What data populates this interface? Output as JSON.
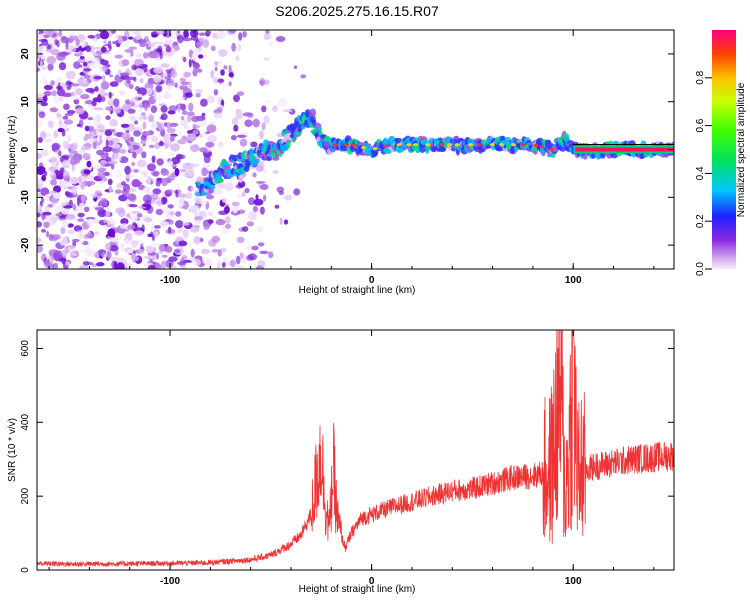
{
  "figure_title": "S206.2025.275.16.15.R07",
  "chart_data": [
    {
      "type": "heatmap",
      "name": "spectrogram",
      "title": "S206.2025.275.16.15.R07",
      "xlabel": "Height of straight line (km)",
      "ylabel": "Frequency (Hz)",
      "xlim": [
        -166,
        150
      ],
      "ylim": [
        -25,
        25
      ],
      "xticks": [
        -100,
        0,
        100
      ],
      "yticks": [
        -20,
        -10,
        0,
        10,
        20
      ],
      "xtick_labels": [
        "-100",
        "0",
        "100"
      ],
      "ytick_labels": [
        "-20",
        "-10",
        "0",
        "10",
        "20"
      ],
      "trace": {
        "x": [
          -86,
          -80,
          -72,
          -64,
          -56,
          -48,
          -40,
          -34,
          -30,
          -26,
          -22,
          -18,
          -10,
          0,
          10,
          20,
          30,
          40,
          50,
          60,
          70,
          80,
          90,
          96,
          100,
          110,
          120,
          130,
          140,
          150
        ],
        "freq": [
          -8,
          -7,
          -4,
          -3,
          -1,
          0,
          3,
          6,
          7,
          3,
          0,
          1,
          1,
          0,
          1,
          1,
          1,
          1,
          1,
          1,
          1,
          1,
          0,
          2,
          0,
          0,
          0,
          0,
          0,
          0
        ]
      },
      "colorbar": {
        "label": "Normalized spectral amplitude",
        "range": [
          0.0,
          1.0
        ],
        "ticks": [
          0.0,
          0.2,
          0.4,
          0.6,
          0.8
        ],
        "tick_labels": [
          "0.0",
          "0.2",
          "0.4",
          "0.6",
          "0.8"
        ]
      }
    },
    {
      "type": "line",
      "name": "snr",
      "xlabel": "Height of straight line (km)",
      "ylabel": "SNR (10 * v/v)",
      "xlim": [
        -166,
        150
      ],
      "ylim": [
        0,
        650
      ],
      "xticks": [
        -100,
        0,
        100
      ],
      "yticks": [
        0,
        200,
        400,
        600
      ],
      "xtick_labels": [
        "-100",
        "0",
        "100"
      ],
      "ytick_labels": [
        "0",
        "200",
        "400",
        "600"
      ],
      "color": "#ee3333",
      "series": [
        {
          "name": "SNR",
          "x": [
            -166,
            -150,
            -120,
            -100,
            -80,
            -60,
            -50,
            -45,
            -40,
            -35,
            -30,
            -27,
            -25,
            -23,
            -21,
            -19,
            -17,
            -15,
            -13,
            -10,
            -5,
            0,
            10,
            20,
            30,
            40,
            50,
            60,
            70,
            80,
            88,
            90,
            92,
            94,
            96,
            98,
            100,
            102,
            104,
            106,
            110,
            120,
            130,
            140,
            150
          ],
          "y": [
            18,
            16,
            17,
            18,
            20,
            28,
            40,
            55,
            70,
            95,
            150,
            260,
            330,
            180,
            110,
            280,
            140,
            90,
            60,
            100,
            140,
            150,
            170,
            185,
            200,
            215,
            220,
            235,
            250,
            255,
            265,
            300,
            430,
            480,
            200,
            320,
            600,
            250,
            280,
            270,
            280,
            290,
            300,
            305,
            310
          ]
        }
      ]
    }
  ]
}
